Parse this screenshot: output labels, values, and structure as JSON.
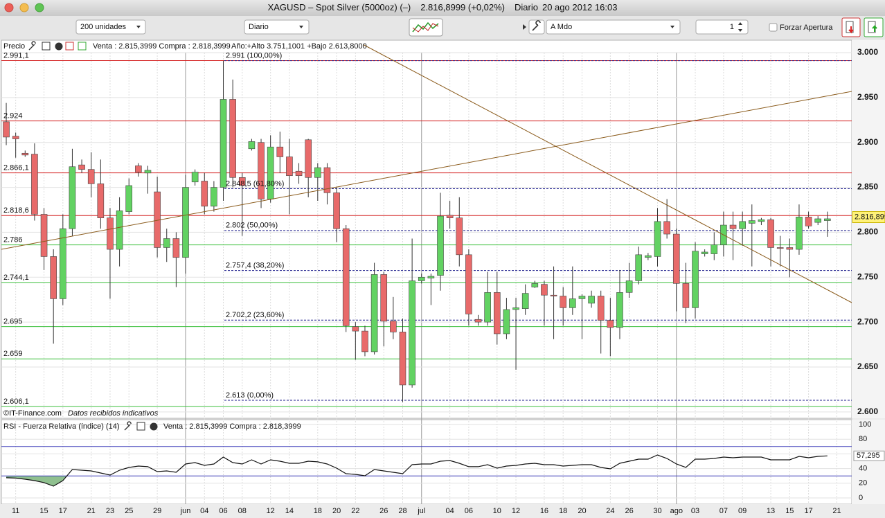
{
  "window": {
    "symbol": "XAGUSD – Spot Silver (5000oz) (–)",
    "quote": "2.816,8999 (+0,02%)",
    "period": "Diario",
    "datetime": "20 ago 2012 16:03"
  },
  "toolbar": {
    "units": "200 unidades",
    "period": "Diario",
    "order_type": "A Mdo",
    "quantity": 1,
    "force_open": "Forzar Apertura"
  },
  "chart_data": [
    {
      "type": "candlestick",
      "title": "Precio",
      "quote": "Venta : 2.815,3999 Compra : 2.818,3999",
      "annotation": "Año:+Alto 3.751,1001 +Bajo 2.613,8000",
      "source": "©IT-Finance.com",
      "note": "Datos recibidos indicativos",
      "categories": [
        null,
        "11",
        null,
        null,
        "15",
        null,
        "17",
        null,
        null,
        "21",
        null,
        "23",
        null,
        "25",
        null,
        null,
        "29",
        null,
        null,
        "jun",
        null,
        "04",
        null,
        "06",
        null,
        "08",
        null,
        null,
        "12",
        null,
        "14",
        null,
        null,
        "18",
        null,
        "20",
        null,
        "22",
        null,
        null,
        "26",
        null,
        "28",
        null,
        "jul",
        null,
        null,
        "04",
        null,
        "06",
        null,
        null,
        "10",
        null,
        "12",
        null,
        null,
        "16",
        null,
        "18",
        null,
        "20",
        null,
        null,
        "24",
        null,
        "26",
        null,
        null,
        "30",
        null,
        "ago",
        null,
        "03",
        null,
        null,
        "07",
        null,
        "09",
        null,
        null,
        "13",
        null,
        "15",
        null,
        "17",
        null,
        null,
        "21"
      ],
      "open": [
        2.923,
        2.907,
        2.888,
        2.887,
        2.82,
        2.773,
        2.726,
        2.804,
        2.875,
        2.87,
        2.854,
        2.816,
        2.781,
        2.823,
        2.874,
        2.866,
        2.845,
        2.783,
        2.793,
        2.772,
        2.856,
        2.857,
        2.829,
        2.85,
        2.948,
        2.861,
        2.893,
        2.9,
        2.837,
        2.895,
        2.884,
        2.868,
        2.903,
        2.861,
        2.872,
        2.844,
        2.804,
        2.695,
        2.69,
        2.667,
        2.753,
        2.701,
        2.689,
        2.63,
        2.746,
        2.749,
        2.752,
        2.819,
        2.816,
        2.775,
        2.703,
        2.7,
        2.733,
        2.687,
        2.714,
        2.715,
        2.739,
        2.742,
        2.73,
        2.729,
        2.716,
        2.726,
        2.721,
        2.729,
        2.702,
        2.694,
        2.733,
        2.746,
        2.772,
        2.773,
        2.812,
        2.798,
        2.743,
        2.716,
        2.776,
        2.776,
        2.786,
        2.808,
        2.804,
        2.81,
        2.812,
        2.814,
        2.783,
        2.783,
        2.781,
        2.817,
        2.811,
        2.813,
        null
      ],
      "high": [
        2.944,
        2.911,
        2.891,
        2.899,
        2.827,
        2.781,
        2.82,
        2.893,
        2.881,
        2.889,
        2.881,
        2.827,
        2.839,
        2.86,
        2.877,
        2.874,
        2.862,
        2.804,
        2.8,
        2.864,
        2.87,
        2.866,
        2.857,
        2.991,
        2.97,
        2.866,
        2.904,
        2.904,
        2.908,
        2.912,
        2.904,
        2.877,
        2.904,
        2.877,
        2.877,
        2.85,
        2.808,
        2.7,
        2.696,
        2.766,
        2.756,
        2.728,
        2.704,
        2.793,
        2.754,
        2.754,
        2.844,
        2.835,
        2.839,
        2.781,
        2.708,
        2.756,
        2.756,
        2.727,
        2.727,
        2.742,
        2.746,
        2.746,
        2.762,
        2.739,
        2.762,
        2.731,
        2.735,
        2.735,
        2.727,
        2.758,
        2.766,
        2.784,
        2.777,
        2.827,
        2.837,
        2.804,
        2.766,
        2.789,
        2.781,
        2.8,
        2.823,
        2.823,
        2.823,
        2.831,
        2.816,
        2.816,
        2.796,
        2.793,
        2.831,
        2.823,
        2.818,
        2.823,
        null
      ],
      "low": [
        2.897,
        2.883,
        2.884,
        2.813,
        2.758,
        2.676,
        2.719,
        2.796,
        2.866,
        2.839,
        2.804,
        2.726,
        2.762,
        2.82,
        2.862,
        2.843,
        2.772,
        2.767,
        2.739,
        2.754,
        2.852,
        2.82,
        2.823,
        2.835,
        2.85,
        2.796,
        2.891,
        2.827,
        2.833,
        2.866,
        2.82,
        2.854,
        2.839,
        2.835,
        2.831,
        2.789,
        2.689,
        2.658,
        2.662,
        2.664,
        2.673,
        2.681,
        2.611,
        2.627,
        2.743,
        2.719,
        2.735,
        2.804,
        2.762,
        2.696,
        2.696,
        2.696,
        2.675,
        2.681,
        2.647,
        2.708,
        2.738,
        2.696,
        2.681,
        2.696,
        2.708,
        2.681,
        2.716,
        2.665,
        2.662,
        2.681,
        2.727,
        2.742,
        2.769,
        2.762,
        2.793,
        2.712,
        2.699,
        2.704,
        2.773,
        2.769,
        2.773,
        2.769,
        2.785,
        2.762,
        2.808,
        2.762,
        2.762,
        2.75,
        2.775,
        2.804,
        2.808,
        2.795,
        null
      ],
      "close": [
        2.906,
        2.904,
        2.886,
        2.82,
        2.773,
        2.726,
        2.804,
        2.873,
        2.87,
        2.854,
        2.816,
        2.781,
        2.824,
        2.852,
        2.867,
        2.869,
        2.783,
        2.793,
        2.772,
        2.85,
        2.867,
        2.829,
        2.85,
        2.948,
        2.861,
        2.852,
        2.901,
        2.837,
        2.895,
        2.884,
        2.863,
        2.863,
        2.861,
        2.872,
        2.844,
        2.804,
        2.696,
        2.69,
        2.667,
        2.753,
        2.701,
        2.689,
        2.63,
        2.746,
        2.75,
        2.751,
        2.818,
        2.816,
        2.775,
        2.709,
        2.7,
        2.733,
        2.687,
        2.714,
        2.716,
        2.732,
        2.743,
        2.73,
        2.729,
        2.716,
        2.726,
        2.729,
        2.729,
        2.702,
        2.694,
        2.733,
        2.746,
        2.775,
        2.774,
        2.812,
        2.798,
        2.743,
        2.716,
        2.779,
        2.778,
        2.786,
        2.808,
        2.804,
        2.812,
        2.813,
        2.814,
        2.783,
        2.782,
        2.781,
        2.817,
        2.807,
        2.815,
        2.815,
        null
      ],
      "up_color": "#62d262",
      "down_color": "#e86a6a",
      "ylim": [
        2.5937,
        3.0108
      ],
      "yticks": [
        {
          "value": 3.0,
          "label": "3.000"
        },
        {
          "value": 2.95,
          "label": "2.950"
        },
        {
          "value": 2.9,
          "label": "2.900"
        },
        {
          "value": 2.85,
          "label": "2.850"
        },
        {
          "value": 2.8,
          "label": "2.800"
        },
        {
          "value": 2.75,
          "label": "2.750"
        },
        {
          "value": 2.7,
          "label": "2.700"
        },
        {
          "value": 2.65,
          "label": "2.650"
        },
        {
          "value": 2.6,
          "label": "2.600"
        }
      ],
      "grid": true,
      "levels": [
        {
          "value": 2.9911,
          "label": "2.991,1",
          "color": "#d42020"
        },
        {
          "value": 2.924,
          "label": "2.924",
          "color": "#d42020"
        },
        {
          "value": 2.8661,
          "label": "2.866,1",
          "color": "#d42020"
        },
        {
          "value": 2.8186,
          "label": "2.818,6",
          "color": "#d42020"
        },
        {
          "value": 2.786,
          "label": "2.786",
          "color": "#3cbf3c"
        },
        {
          "value": 2.7441,
          "label": "2.744,1",
          "color": "#3cbf3c"
        },
        {
          "value": 2.695,
          "label": "2.695",
          "color": "#3cbf3c"
        },
        {
          "value": 2.659,
          "label": "2.659",
          "color": "#3cbf3c"
        },
        {
          "value": 2.6061,
          "label": "2.606,1",
          "color": "#3cbf3c"
        }
      ],
      "fibonacci": [
        {
          "value": 2.991,
          "label": "2.991 (100,00%)"
        },
        {
          "value": 2.8485,
          "label": "2.848,5 (61,80%)"
        },
        {
          "value": 2.802,
          "label": "2.802 (50,00%)"
        },
        {
          "value": 2.7574,
          "label": "2.757,4 (38,20%)"
        },
        {
          "value": 2.7022,
          "label": "2.702,2 (23,60%)"
        },
        {
          "value": 2.613,
          "label": "2.613 (0,00%)"
        }
      ],
      "fib_color": "#1c1c8c",
      "last_price": {
        "value": 2.816899,
        "label": "2.816,899"
      }
    },
    {
      "type": "line",
      "title": "RSI - Fuerza Relativa (índice) (14)",
      "quote": "Venta : 2.815,3999 Compra : 2.818,3999",
      "values": [
        27.4,
        27,
        25.5,
        23.6,
        20.8,
        16,
        23.6,
        38.7,
        37.7,
        36.8,
        34,
        31.1,
        37.7,
        41.5,
        43.4,
        42.5,
        35.8,
        36.8,
        34.9,
        46.2,
        48.1,
        44.3,
        46.2,
        55.7,
        48.1,
        46.2,
        51.9,
        46.2,
        51.9,
        50,
        47.2,
        47.2,
        50,
        49.1,
        46.2,
        40.6,
        33,
        32.1,
        30.2,
        38.7,
        36.8,
        34.9,
        33,
        45.3,
        46.2,
        46.2,
        50,
        50.9,
        47.2,
        42.5,
        42.5,
        45.3,
        40.6,
        43.4,
        44.3,
        46.2,
        47.2,
        45.3,
        45.3,
        43.4,
        44.3,
        45.3,
        45.3,
        41.5,
        39.6,
        47.2,
        50,
        52.8,
        52.8,
        58.5,
        53.8,
        46.2,
        41.5,
        52.8,
        52.8,
        53.8,
        55.7,
        54.7,
        55.7,
        55.7,
        55.7,
        51.9,
        51.9,
        51.9,
        56.6,
        54.7,
        56.6,
        57.295,
        null
      ],
      "color": "#111111",
      "band_color": "#3a3ab8",
      "fill_color": "#8fc08f",
      "ylim": [
        -8.5,
        106.6
      ],
      "yticks": [
        0,
        20,
        40,
        60,
        80,
        100
      ],
      "bands": [
        30,
        70
      ],
      "last_value": {
        "value": 57.295,
        "label": "57,295"
      }
    }
  ]
}
